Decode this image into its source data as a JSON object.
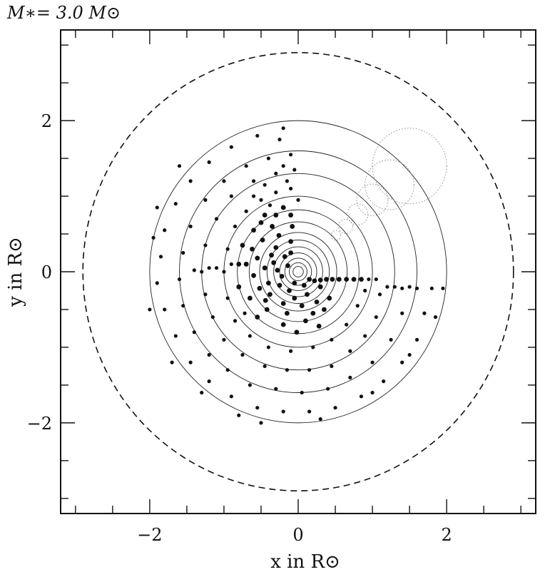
{
  "chart_data": {
    "type": "scatter",
    "title": "M∗= 3.0 M⊙",
    "xlabel": "x in R⊙",
    "ylabel": "y in R⊙",
    "xlim": [
      -3.2,
      3.2
    ],
    "ylim": [
      -3.2,
      3.2
    ],
    "x_ticks": [
      -2,
      0,
      2
    ],
    "y_ticks": [
      -2,
      0,
      2
    ],
    "x_tick_labels": [
      "−2",
      "0",
      "2"
    ],
    "y_tick_labels": [
      "−2",
      "0",
      "2"
    ],
    "minor_tick_step": 0.5,
    "grid": false,
    "legend": "none",
    "colors": {
      "ink": "#111111",
      "faint": "#8a8a8a"
    },
    "outer_boundary": {
      "center": [
        0,
        0
      ],
      "radius": 2.9,
      "style": "dashed"
    },
    "solid_shells": {
      "center": [
        0,
        0
      ],
      "radii": [
        2.0,
        1.6,
        1.3,
        1.0,
        0.82,
        0.66,
        0.52,
        0.42,
        0.33,
        0.25,
        0.18,
        0.12,
        0.07
      ]
    },
    "dotted_circles": [
      {
        "center": [
          1.5,
          1.4
        ],
        "radius": 0.5
      },
      {
        "center": [
          1.23,
          1.15
        ],
        "radius": 0.33
      },
      {
        "center": [
          1.0,
          0.95
        ],
        "radius": 0.21
      },
      {
        "center": [
          0.8,
          0.76
        ],
        "radius": 0.14
      },
      {
        "center": [
          0.64,
          0.6
        ],
        "radius": 0.095
      },
      {
        "center": [
          0.51,
          0.48
        ],
        "radius": 0.065
      }
    ],
    "points": [
      [
        -0.28,
        0.02
      ],
      [
        -0.22,
        -0.06
      ],
      [
        -0.33,
        0.12
      ],
      [
        -0.18,
        0.2
      ],
      [
        -0.4,
        -0.15
      ],
      [
        -0.12,
        -0.25
      ],
      [
        -0.3,
        0.32
      ],
      [
        -0.45,
        0.05
      ],
      [
        -0.05,
        -0.35
      ],
      [
        -0.2,
        -0.42
      ],
      [
        -0.38,
        -0.3
      ],
      [
        -0.55,
        0.18
      ],
      [
        -0.1,
        0.4
      ],
      [
        -0.26,
        0.48
      ],
      [
        -0.52,
        -0.22
      ],
      [
        0.05,
        -0.45
      ],
      [
        -0.15,
        -0.55
      ],
      [
        -0.42,
        -0.5
      ],
      [
        -0.62,
        0.3
      ],
      [
        -0.35,
        0.6
      ],
      [
        0.12,
        -0.3
      ],
      [
        -0.6,
        -0.05
      ],
      [
        -0.08,
        0.6
      ],
      [
        -0.48,
        0.42
      ],
      [
        -0.2,
        -0.7
      ],
      [
        0.2,
        -0.55
      ],
      [
        -0.55,
        -0.6
      ],
      [
        -0.7,
        0.1
      ],
      [
        -0.3,
        0.75
      ],
      [
        0.3,
        -0.2
      ],
      [
        -0.05,
        -0.15
      ],
      [
        -0.14,
        0.08
      ],
      [
        -0.25,
        -0.18
      ],
      [
        -0.36,
        0.22
      ],
      [
        -0.44,
        -0.38
      ],
      [
        -0.1,
        0.25
      ],
      [
        0.08,
        -0.18
      ],
      [
        0.15,
        -0.1
      ],
      [
        0.22,
        -0.12
      ],
      [
        0.3,
        -0.11
      ],
      [
        0.38,
        -0.1
      ],
      [
        0.46,
        -0.1
      ],
      [
        0.55,
        -0.1
      ],
      [
        0.65,
        -0.1
      ],
      [
        0.75,
        -0.1
      ],
      [
        0.85,
        -0.1
      ],
      [
        0.95,
        -0.1
      ],
      [
        1.05,
        -0.1
      ],
      [
        0.25,
        -0.4
      ],
      [
        0.35,
        -0.5
      ],
      [
        0.1,
        -0.65
      ],
      [
        0.28,
        -0.72
      ],
      [
        -0.02,
        -0.8
      ],
      [
        0.42,
        -0.35
      ],
      [
        -0.65,
        -0.35
      ],
      [
        -0.72,
        -0.55
      ],
      [
        -0.5,
        0.65
      ],
      [
        -0.6,
        0.55
      ],
      [
        -0.75,
        0.35
      ],
      [
        -0.8,
        -0.2
      ],
      [
        -0.2,
        0.85
      ],
      [
        -0.38,
        0.88
      ],
      [
        0.0,
        0.95
      ],
      [
        -0.1,
        1.1
      ],
      [
        -0.3,
        1.05
      ],
      [
        -0.5,
        0.95
      ],
      [
        -0.7,
        0.8
      ],
      [
        -0.85,
        0.6
      ],
      [
        -0.95,
        0.3
      ],
      [
        -1.0,
        0.0
      ],
      [
        -0.95,
        -0.35
      ],
      [
        -0.85,
        -0.65
      ],
      [
        -0.65,
        -0.85
      ],
      [
        -0.4,
        -1.0
      ],
      [
        -0.1,
        -1.05
      ],
      [
        0.2,
        -1.0
      ],
      [
        0.45,
        -0.9
      ],
      [
        0.65,
        -0.7
      ],
      [
        0.8,
        -0.45
      ],
      [
        0.9,
        -0.25
      ],
      [
        1.1,
        -0.3
      ],
      [
        1.05,
        -0.6
      ],
      [
        0.9,
        -0.85
      ],
      [
        0.7,
        -1.05
      ],
      [
        0.45,
        -1.25
      ],
      [
        0.15,
        -1.3
      ],
      [
        -0.15,
        -1.3
      ],
      [
        -0.45,
        -1.25
      ],
      [
        -0.75,
        -1.1
      ],
      [
        -1.0,
        -0.9
      ],
      [
        -1.15,
        -0.6
      ],
      [
        -1.25,
        -0.3
      ],
      [
        -1.3,
        0.0
      ],
      [
        -1.25,
        0.35
      ],
      [
        -1.1,
        0.7
      ],
      [
        -0.9,
        1.0
      ],
      [
        -0.6,
        1.2
      ],
      [
        -0.3,
        1.3
      ],
      [
        -0.05,
        1.35
      ],
      [
        -0.1,
        1.55
      ],
      [
        -0.4,
        1.5
      ],
      [
        -0.7,
        1.4
      ],
      [
        -1.0,
        1.2
      ],
      [
        -1.25,
        0.95
      ],
      [
        -1.45,
        0.6
      ],
      [
        -1.55,
        0.25
      ],
      [
        -1.6,
        -0.1
      ],
      [
        -1.55,
        -0.45
      ],
      [
        -1.4,
        -0.8
      ],
      [
        -1.2,
        -1.1
      ],
      [
        -0.95,
        -1.3
      ],
      [
        -0.65,
        -1.5
      ],
      [
        -0.3,
        -1.55
      ],
      [
        0.05,
        -1.6
      ],
      [
        0.4,
        -1.55
      ],
      [
        0.7,
        -1.4
      ],
      [
        1.0,
        -1.2
      ],
      [
        1.25,
        -0.9
      ],
      [
        1.4,
        -0.55
      ],
      [
        1.5,
        -0.2
      ],
      [
        1.2,
        -0.2
      ],
      [
        1.3,
        -0.2
      ],
      [
        1.4,
        -0.22
      ],
      [
        1.6,
        -0.22
      ],
      [
        1.8,
        -0.22
      ],
      [
        1.95,
        -0.22
      ],
      [
        1.7,
        -0.55
      ],
      [
        1.6,
        -0.9
      ],
      [
        1.4,
        -1.2
      ],
      [
        1.15,
        -1.45
      ],
      [
        0.85,
        -1.65
      ],
      [
        0.5,
        -1.8
      ],
      [
        0.15,
        -1.85
      ],
      [
        -0.2,
        -1.85
      ],
      [
        -0.55,
        -1.8
      ],
      [
        -0.9,
        -1.65
      ],
      [
        -1.2,
        -1.45
      ],
      [
        -1.45,
        -1.2
      ],
      [
        -1.65,
        -0.85
      ],
      [
        -1.8,
        -0.5
      ],
      [
        -1.9,
        -0.15
      ],
      [
        -1.85,
        0.2
      ],
      [
        -1.8,
        0.55
      ],
      [
        -1.65,
        0.9
      ],
      [
        -1.45,
        1.2
      ],
      [
        -1.2,
        1.45
      ],
      [
        -0.9,
        1.65
      ],
      [
        -0.55,
        1.8
      ],
      [
        -0.2,
        1.9
      ],
      [
        -0.25,
        1.75
      ],
      [
        -1.9,
        0.85
      ],
      [
        -1.95,
        0.45
      ],
      [
        -2.0,
        -0.5
      ],
      [
        -1.7,
        -1.2
      ],
      [
        -1.3,
        -1.6
      ],
      [
        -0.5,
        -2.0
      ],
      [
        0.3,
        -1.95
      ],
      [
        1.0,
        -1.6
      ],
      [
        1.5,
        -1.1
      ],
      [
        1.85,
        -0.6
      ],
      [
        -0.8,
        -1.9
      ],
      [
        -1.6,
        1.4
      ],
      [
        -0.7,
        0.1
      ],
      [
        -0.8,
        0.1
      ],
      [
        -0.9,
        0.1
      ],
      [
        -1.1,
        0.05
      ],
      [
        -1.2,
        0.05
      ],
      [
        -1.4,
        0.02
      ],
      [
        -0.15,
        1.2
      ],
      [
        -0.2,
        1.4
      ],
      [
        -0.45,
        1.15
      ],
      [
        -0.6,
        1.0
      ],
      [
        -0.1,
        0.75
      ],
      [
        -0.45,
        0.75
      ]
    ]
  }
}
